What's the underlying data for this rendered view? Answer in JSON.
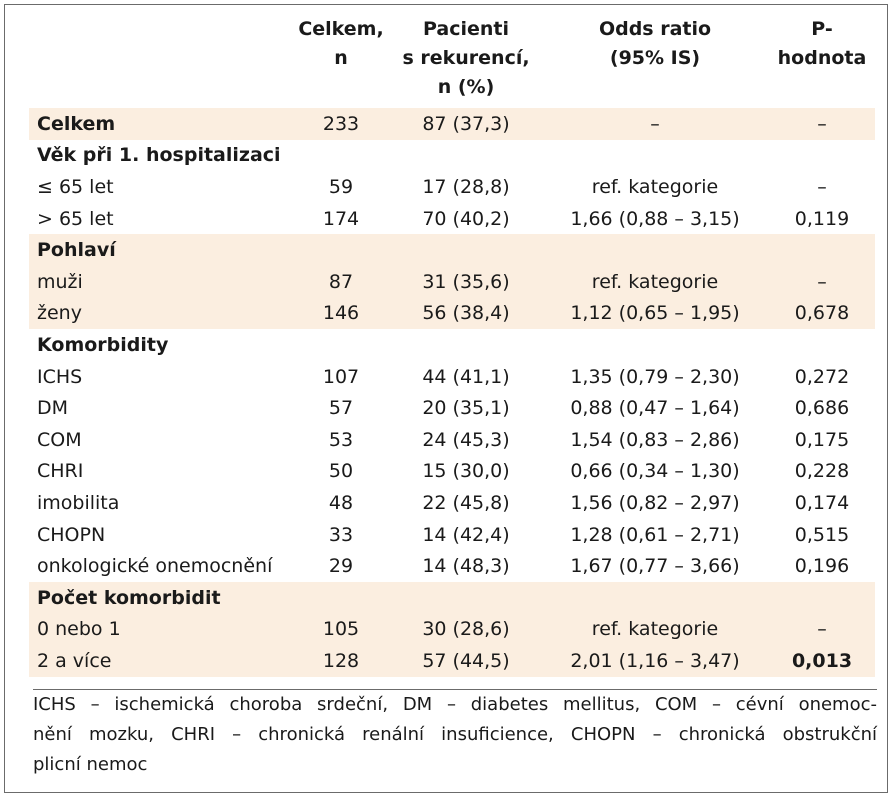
{
  "headers": [
    "",
    "Celkem,\nn",
    "Pacienti\ns rekurencí,\nn (%)",
    "Odds ratio\n(95% IS)",
    "P-hodnota"
  ],
  "rows": [
    {
      "label": "Celkem",
      "total": "233",
      "recur": "87 (37,3)",
      "or": "–",
      "p": "–",
      "type": "total",
      "shaded": true
    },
    {
      "label": "Věk při 1. hospitalizaci",
      "type": "section",
      "shaded": false
    },
    {
      "label": "≤ 65 let",
      "total": "59",
      "recur": "17 (28,8)",
      "or": "ref. kategorie",
      "p": "–",
      "type": "data",
      "shaded": false
    },
    {
      "label": "> 65 let",
      "total": "174",
      "recur": "70 (40,2)",
      "or": "1,66 (0,88 – 3,15)",
      "p": "0,119",
      "type": "data",
      "shaded": false
    },
    {
      "label": "Pohlaví",
      "type": "section",
      "shaded": true
    },
    {
      "label": "muži",
      "total": "87",
      "recur": "31 (35,6)",
      "or": "ref. kategorie",
      "p": "–",
      "type": "data",
      "shaded": true
    },
    {
      "label": "ženy",
      "total": "146",
      "recur": "56 (38,4)",
      "or": "1,12 (0,65 – 1,95)",
      "p": "0,678",
      "type": "data",
      "shaded": true
    },
    {
      "label": "Komorbidity",
      "type": "section",
      "shaded": false
    },
    {
      "label": "ICHS",
      "total": "107",
      "recur": "44 (41,1)",
      "or": "1,35 (0,79 – 2,30)",
      "p": "0,272",
      "type": "data",
      "shaded": false
    },
    {
      "label": "DM",
      "total": "57",
      "recur": "20 (35,1)",
      "or": "0,88 (0,47 – 1,64)",
      "p": "0,686",
      "type": "data",
      "shaded": false
    },
    {
      "label": "COM",
      "total": "53",
      "recur": "24 (45,3)",
      "or": "1,54 (0,83 – 2,86)",
      "p": "0,175",
      "type": "data",
      "shaded": false
    },
    {
      "label": "CHRI",
      "total": "50",
      "recur": "15 (30,0)",
      "or": "0,66 (0,34 – 1,30)",
      "p": "0,228",
      "type": "data",
      "shaded": false
    },
    {
      "label": "imobilita",
      "total": "48",
      "recur": "22 (45,8)",
      "or": "1,56 (0,82 – 2,97)",
      "p": "0,174",
      "type": "data",
      "shaded": false
    },
    {
      "label": "CHOPN",
      "total": "33",
      "recur": "14 (42,4)",
      "or": "1,28 (0,61 – 2,71)",
      "p": "0,515",
      "type": "data",
      "shaded": false
    },
    {
      "label": "onkologické onemocnění",
      "total": "29",
      "recur": "14 (48,3)",
      "or": "1,67 (0,77 – 3,66)",
      "p": "0,196",
      "type": "data",
      "shaded": false
    },
    {
      "label": "Počet komorbidit",
      "type": "section",
      "shaded": true
    },
    {
      "label": "0 nebo 1",
      "total": "105",
      "recur": "30 (28,6)",
      "or": "ref. kategorie",
      "p": "–",
      "type": "data",
      "shaded": true
    },
    {
      "label": "2 a více",
      "total": "128",
      "recur": "57 (44,5)",
      "or": "2,01 (1,16 – 3,47)",
      "p": "0,013",
      "p_bold": true,
      "type": "data",
      "shaded": true
    }
  ],
  "footnote": [
    "ICHS – ischemická choroba srdeční, DM – diabetes mellitus, COM – cévní onemoc-",
    "nění mozku, CHRI – chronická renální insuficience, CHOPN – chronická obstrukční",
    "plicní nemoc"
  ],
  "colors": {
    "shade": "#fbeee0",
    "border": "#6b6b6b",
    "text": "#1a1a1a"
  }
}
